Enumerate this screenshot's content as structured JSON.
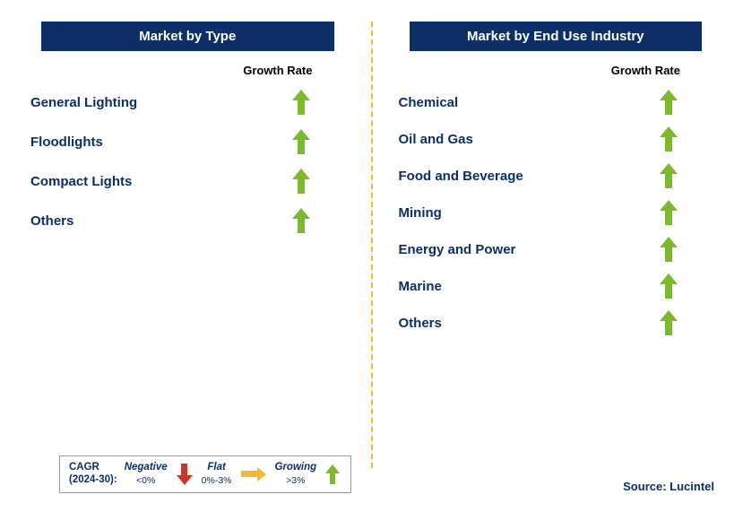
{
  "colors": {
    "header_bg": "#0b2f66",
    "text_primary": "#0b2f66",
    "divider": "#f7b733",
    "arrow_growing": "#7cb92c",
    "arrow_flat": "#f7b733",
    "arrow_negative": "#c0392b",
    "legend_border": "#9a9a9a",
    "legend_text": "#0b2f66",
    "black": "#000000"
  },
  "fontsizes": {
    "header": 15,
    "growth_label": 13,
    "row_label": 15,
    "legend": 11.5,
    "legend_sub": 10.5,
    "source": 13
  },
  "left_panel": {
    "header": "Market by Type",
    "growth_label": "Growth Rate",
    "items": [
      {
        "label": "General Lighting",
        "trend": "growing"
      },
      {
        "label": "Floodlights",
        "trend": "growing"
      },
      {
        "label": "Compact Lights",
        "trend": "growing"
      },
      {
        "label": "Others",
        "trend": "growing"
      }
    ]
  },
  "right_panel": {
    "header": "Market by End Use Industry",
    "growth_label": "Growth Rate",
    "items": [
      {
        "label": "Chemical",
        "trend": "growing"
      },
      {
        "label": "Oil and Gas",
        "trend": "growing"
      },
      {
        "label": "Food and Beverage",
        "trend": "growing"
      },
      {
        "label": "Mining",
        "trend": "growing"
      },
      {
        "label": "Energy and Power",
        "trend": "growing"
      },
      {
        "label": "Marine",
        "trend": "growing"
      },
      {
        "label": "Others",
        "trend": "growing"
      }
    ]
  },
  "legend": {
    "cagr_line1": "CAGR",
    "cagr_line2": "(2024-30):",
    "negative": {
      "title": "Negative",
      "sub": "<0%"
    },
    "flat": {
      "title": "Flat",
      "sub": "0%-3%"
    },
    "growing": {
      "title": "Growing",
      "sub": ">3%"
    }
  },
  "source": "Source: Lucintel"
}
